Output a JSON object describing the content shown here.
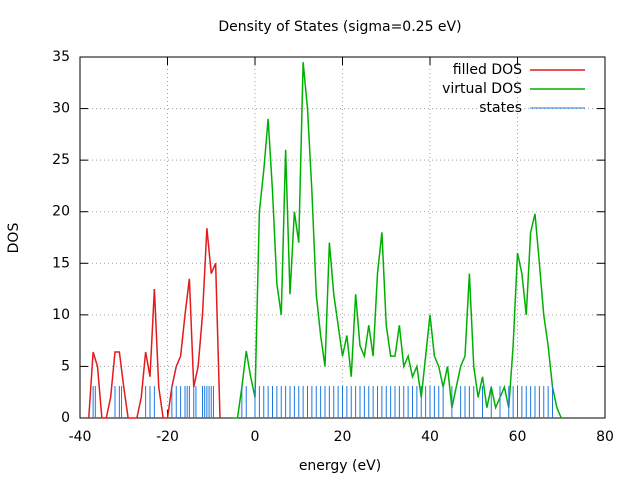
{
  "chart_data": {
    "type": "line",
    "title": "Density of States (sigma=0.25 eV)",
    "xlabel": "energy (eV)",
    "ylabel": "DOS",
    "xlim": [
      -40,
      80
    ],
    "xticks": [
      -40,
      -20,
      0,
      20,
      40,
      60,
      80
    ],
    "ylim": [
      0,
      35
    ],
    "yticks": [
      0,
      5,
      10,
      15,
      20,
      25,
      30,
      35
    ],
    "grid": true,
    "legend": "top-right",
    "series": [
      {
        "name": "filled DOS",
        "color": "#e41a1c",
        "style": "lines",
        "x": [
          -38,
          -37,
          -36,
          -35,
          -34,
          -33,
          -32,
          -31,
          -30,
          -29,
          -28,
          -27,
          -26,
          -25,
          -24,
          -23,
          -22,
          -21,
          -20,
          -19,
          -18,
          -17,
          -16,
          -15,
          -14,
          -13,
          -12,
          -11,
          -10,
          -9,
          -8
        ],
        "values": [
          0,
          6.4,
          5,
          0,
          0,
          2,
          6.4,
          6.4,
          3,
          0,
          0,
          0,
          2,
          6.4,
          4,
          12.5,
          3,
          0,
          0,
          3,
          5,
          6,
          10,
          13.5,
          3,
          5,
          10,
          18.4,
          14,
          15,
          0
        ]
      },
      {
        "name": "virtual DOS",
        "color": "#00b000",
        "style": "lines",
        "x": [
          -5,
          -4,
          -3,
          -2,
          -1,
          0,
          1,
          2,
          3,
          4,
          5,
          6,
          7,
          8,
          9,
          10,
          11,
          12,
          13,
          14,
          15,
          16,
          17,
          18,
          19,
          20,
          21,
          22,
          23,
          24,
          25,
          26,
          27,
          28,
          29,
          30,
          31,
          32,
          33,
          34,
          35,
          36,
          37,
          38,
          39,
          40,
          41,
          42,
          43,
          44,
          45,
          46,
          47,
          48,
          49,
          50,
          51,
          52,
          53,
          54,
          55,
          56,
          57,
          58,
          59,
          60,
          61,
          62,
          63,
          64,
          65,
          66,
          67,
          68,
          69,
          70
        ],
        "values": [
          0,
          0,
          3,
          6.5,
          4,
          2,
          20,
          24,
          29,
          22,
          13,
          10,
          26,
          12,
          20,
          17,
          34.5,
          30,
          22,
          12,
          8,
          5,
          17,
          12,
          9,
          6,
          8,
          4,
          12,
          7,
          6,
          9,
          6,
          14,
          18,
          9,
          6,
          6,
          9,
          5,
          6,
          4,
          5,
          2,
          6,
          10,
          6,
          5,
          3,
          5,
          1,
          3,
          5,
          6,
          14,
          5,
          2,
          4,
          1,
          3,
          1,
          2,
          3,
          1,
          7,
          16,
          14,
          10,
          18,
          19.8,
          15,
          10,
          7,
          3,
          1,
          0
        ]
      },
      {
        "name": "states",
        "color": "#1e78e0",
        "style": "impulses",
        "x": [
          -37,
          -36.5,
          -32,
          -31,
          -30.5,
          -25,
          -24,
          -23,
          -19,
          -18,
          -17,
          -16,
          -15.5,
          -15,
          -14,
          -13.5,
          -12,
          -11.5,
          -11,
          -10.5,
          -10,
          -9.5,
          -3,
          -2,
          0,
          1,
          2,
          3,
          4,
          5,
          6,
          7,
          8,
          9,
          10,
          11,
          12,
          13,
          14,
          15,
          16,
          17,
          18,
          19,
          20,
          21,
          22,
          23,
          24,
          25,
          26,
          27,
          28,
          29,
          30,
          31,
          32,
          33,
          34,
          35,
          36,
          37,
          38,
          39,
          40,
          41,
          42,
          43,
          45,
          47,
          48,
          49,
          50,
          52,
          54,
          56,
          58,
          59,
          60,
          61,
          62,
          63,
          64,
          65,
          66,
          67,
          68
        ],
        "values": [
          3.1,
          3.1,
          3.1,
          3.1,
          3.1,
          3.1,
          3.1,
          3.1,
          3.1,
          3.1,
          3.1,
          3.1,
          3.1,
          3.1,
          3.1,
          3.1,
          3.1,
          3.1,
          3.1,
          3.1,
          3.1,
          3.1,
          3.1,
          3.1,
          3.1,
          3.1,
          3.1,
          3.1,
          3.1,
          3.1,
          3.1,
          3.1,
          3.1,
          3.1,
          3.1,
          3.1,
          3.1,
          3.1,
          3.1,
          3.1,
          3.1,
          3.1,
          3.1,
          3.1,
          3.1,
          3.1,
          3.1,
          3.1,
          3.1,
          3.1,
          3.1,
          3.1,
          3.1,
          3.1,
          3.1,
          3.1,
          3.1,
          3.1,
          3.1,
          3.1,
          3.1,
          3.1,
          3.1,
          3.1,
          3.1,
          3.1,
          3.1,
          3.1,
          3.1,
          3.1,
          3.1,
          3.1,
          3.1,
          3.1,
          3.1,
          3.1,
          3.1,
          3.1,
          3.1,
          3.1,
          3.1,
          3.1,
          3.1,
          3.1,
          3.1,
          3.1,
          3.1
        ]
      }
    ]
  }
}
